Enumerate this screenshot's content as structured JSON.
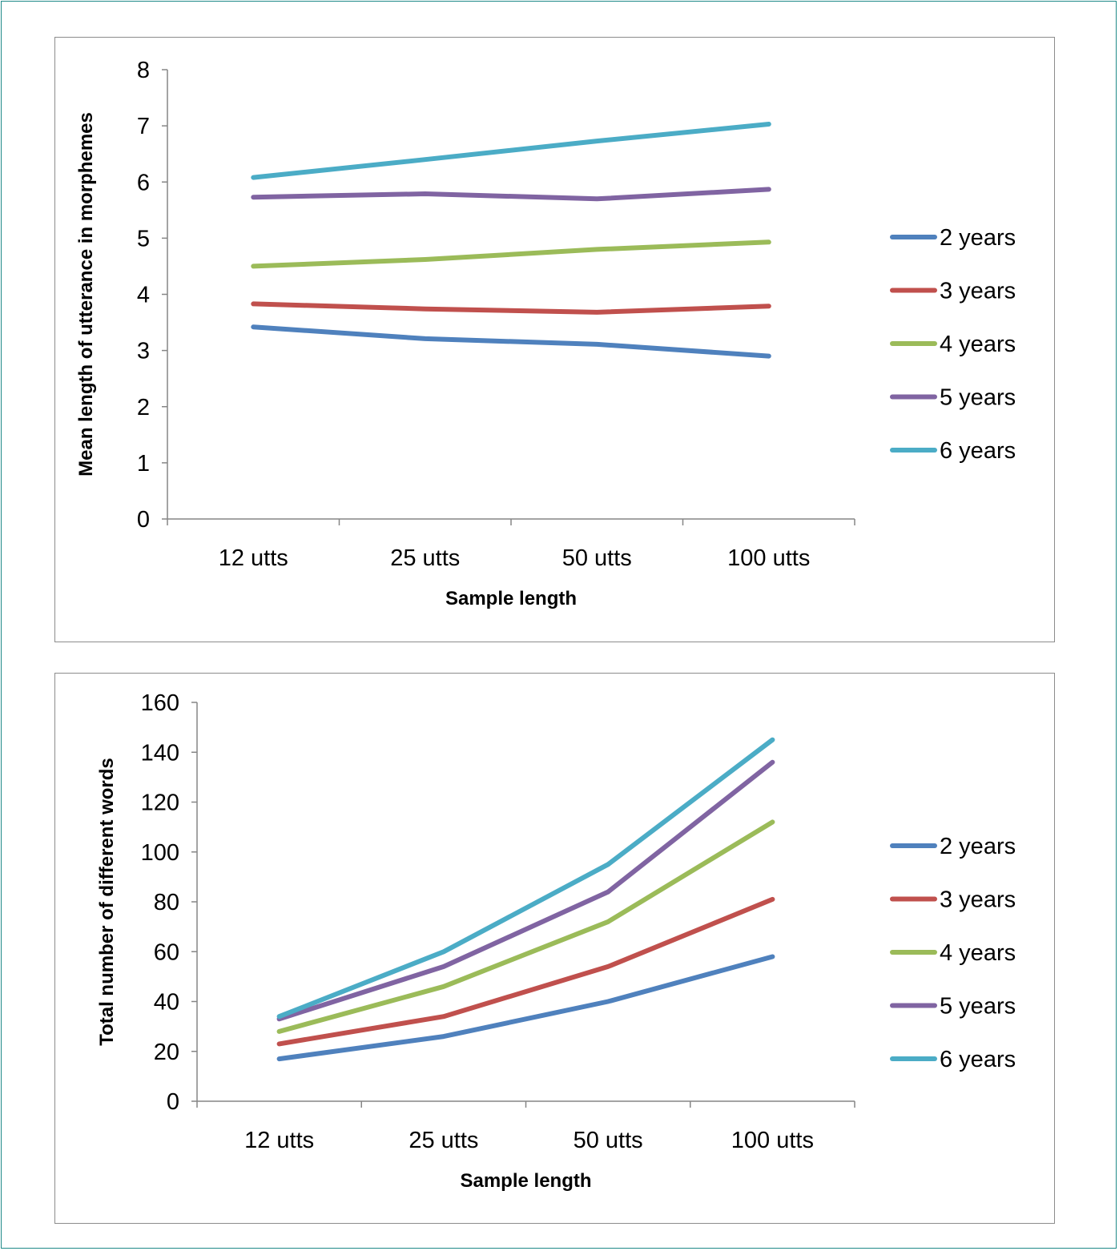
{
  "chart_data": [
    {
      "type": "line",
      "categories": [
        "12 utts",
        "25 utts",
        "50 utts",
        "100 utts"
      ],
      "xlabel": "Sample length",
      "ylabel": "Mean length of utterance in morphemes",
      "ylim": [
        0,
        8
      ],
      "yticks": [
        "0",
        "1",
        "2",
        "3",
        "4",
        "5",
        "6",
        "7",
        "8"
      ],
      "grid": false,
      "legend_position": "right",
      "series": [
        {
          "name": "2 years",
          "color": "#4f81bd",
          "values": [
            3.42,
            3.21,
            3.11,
            2.9
          ]
        },
        {
          "name": "3 years",
          "color": "#c0504d",
          "values": [
            3.83,
            3.74,
            3.68,
            3.79
          ]
        },
        {
          "name": "4 years",
          "color": "#9bbb59",
          "values": [
            4.5,
            4.62,
            4.8,
            4.93
          ]
        },
        {
          "name": "5 years",
          "color": "#8064a2",
          "values": [
            5.73,
            5.79,
            5.7,
            5.87
          ]
        },
        {
          "name": "6 years",
          "color": "#4bacc6",
          "values": [
            6.08,
            6.4,
            6.73,
            7.03
          ]
        }
      ]
    },
    {
      "type": "line",
      "categories": [
        "12 utts",
        "25 utts",
        "50 utts",
        "100 utts"
      ],
      "xlabel": "Sample length",
      "ylabel": "Total number of different words",
      "ylim": [
        0,
        160
      ],
      "yticks": [
        "0",
        "20",
        "40",
        "60",
        "80",
        "100",
        "120",
        "140",
        "160"
      ],
      "grid": false,
      "legend_position": "right",
      "series": [
        {
          "name": "2 years",
          "color": "#4f81bd",
          "values": [
            17,
            26,
            40,
            58
          ]
        },
        {
          "name": "3 years",
          "color": "#c0504d",
          "values": [
            23,
            34,
            54,
            81
          ]
        },
        {
          "name": "4 years",
          "color": "#9bbb59",
          "values": [
            28,
            46,
            72,
            112
          ]
        },
        {
          "name": "5 years",
          "color": "#8064a2",
          "values": [
            33,
            54,
            84,
            136
          ]
        },
        {
          "name": "6 years",
          "color": "#4bacc6",
          "values": [
            34,
            60,
            95,
            145
          ]
        }
      ]
    }
  ]
}
